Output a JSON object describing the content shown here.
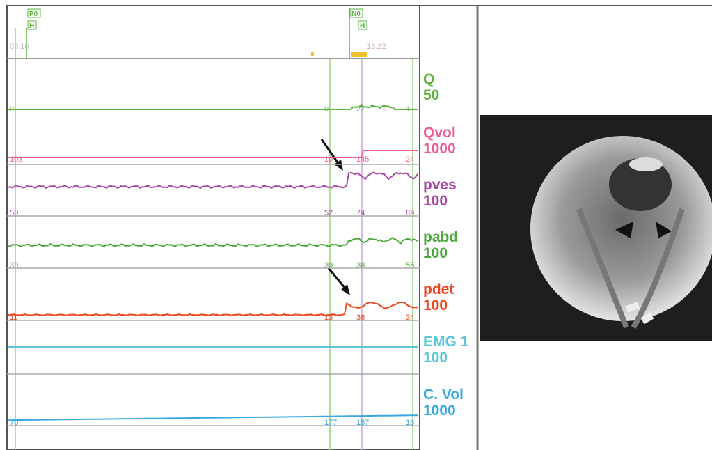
{
  "markers": [
    {
      "top": "P0",
      "bottom": "H"
    },
    {
      "top": "N0",
      "bottom": "H"
    }
  ],
  "times": [
    "08:10",
    "13:22"
  ],
  "channels": [
    {
      "name": "Q",
      "scale": "50",
      "color": "#5db33c",
      "values": [
        "0",
        "0",
        "27",
        "1"
      ]
    },
    {
      "name": "Qvol",
      "scale": "1000",
      "color": "#ee5f9a",
      "values": [
        "103",
        "10",
        "145",
        "24"
      ]
    },
    {
      "name": "pves",
      "scale": "100",
      "color": "#a64aa6",
      "values": [
        "50",
        "52",
        "74",
        "89"
      ]
    },
    {
      "name": "pabd",
      "scale": "100",
      "color": "#4aa93a",
      "values": [
        "39",
        "39",
        "38",
        "55"
      ]
    },
    {
      "name": "pdet",
      "scale": "100",
      "color": "#f0441e",
      "values": [
        "11",
        "13",
        "36",
        "34"
      ]
    },
    {
      "name": "EMG 1",
      "scale": "100",
      "color": "#5cc6d6"
    },
    {
      "name": "C. Vol",
      "scale": "1000",
      "color": "#3aa7e0",
      "values": [
        "70",
        "177",
        "187",
        "18"
      ]
    }
  ]
}
